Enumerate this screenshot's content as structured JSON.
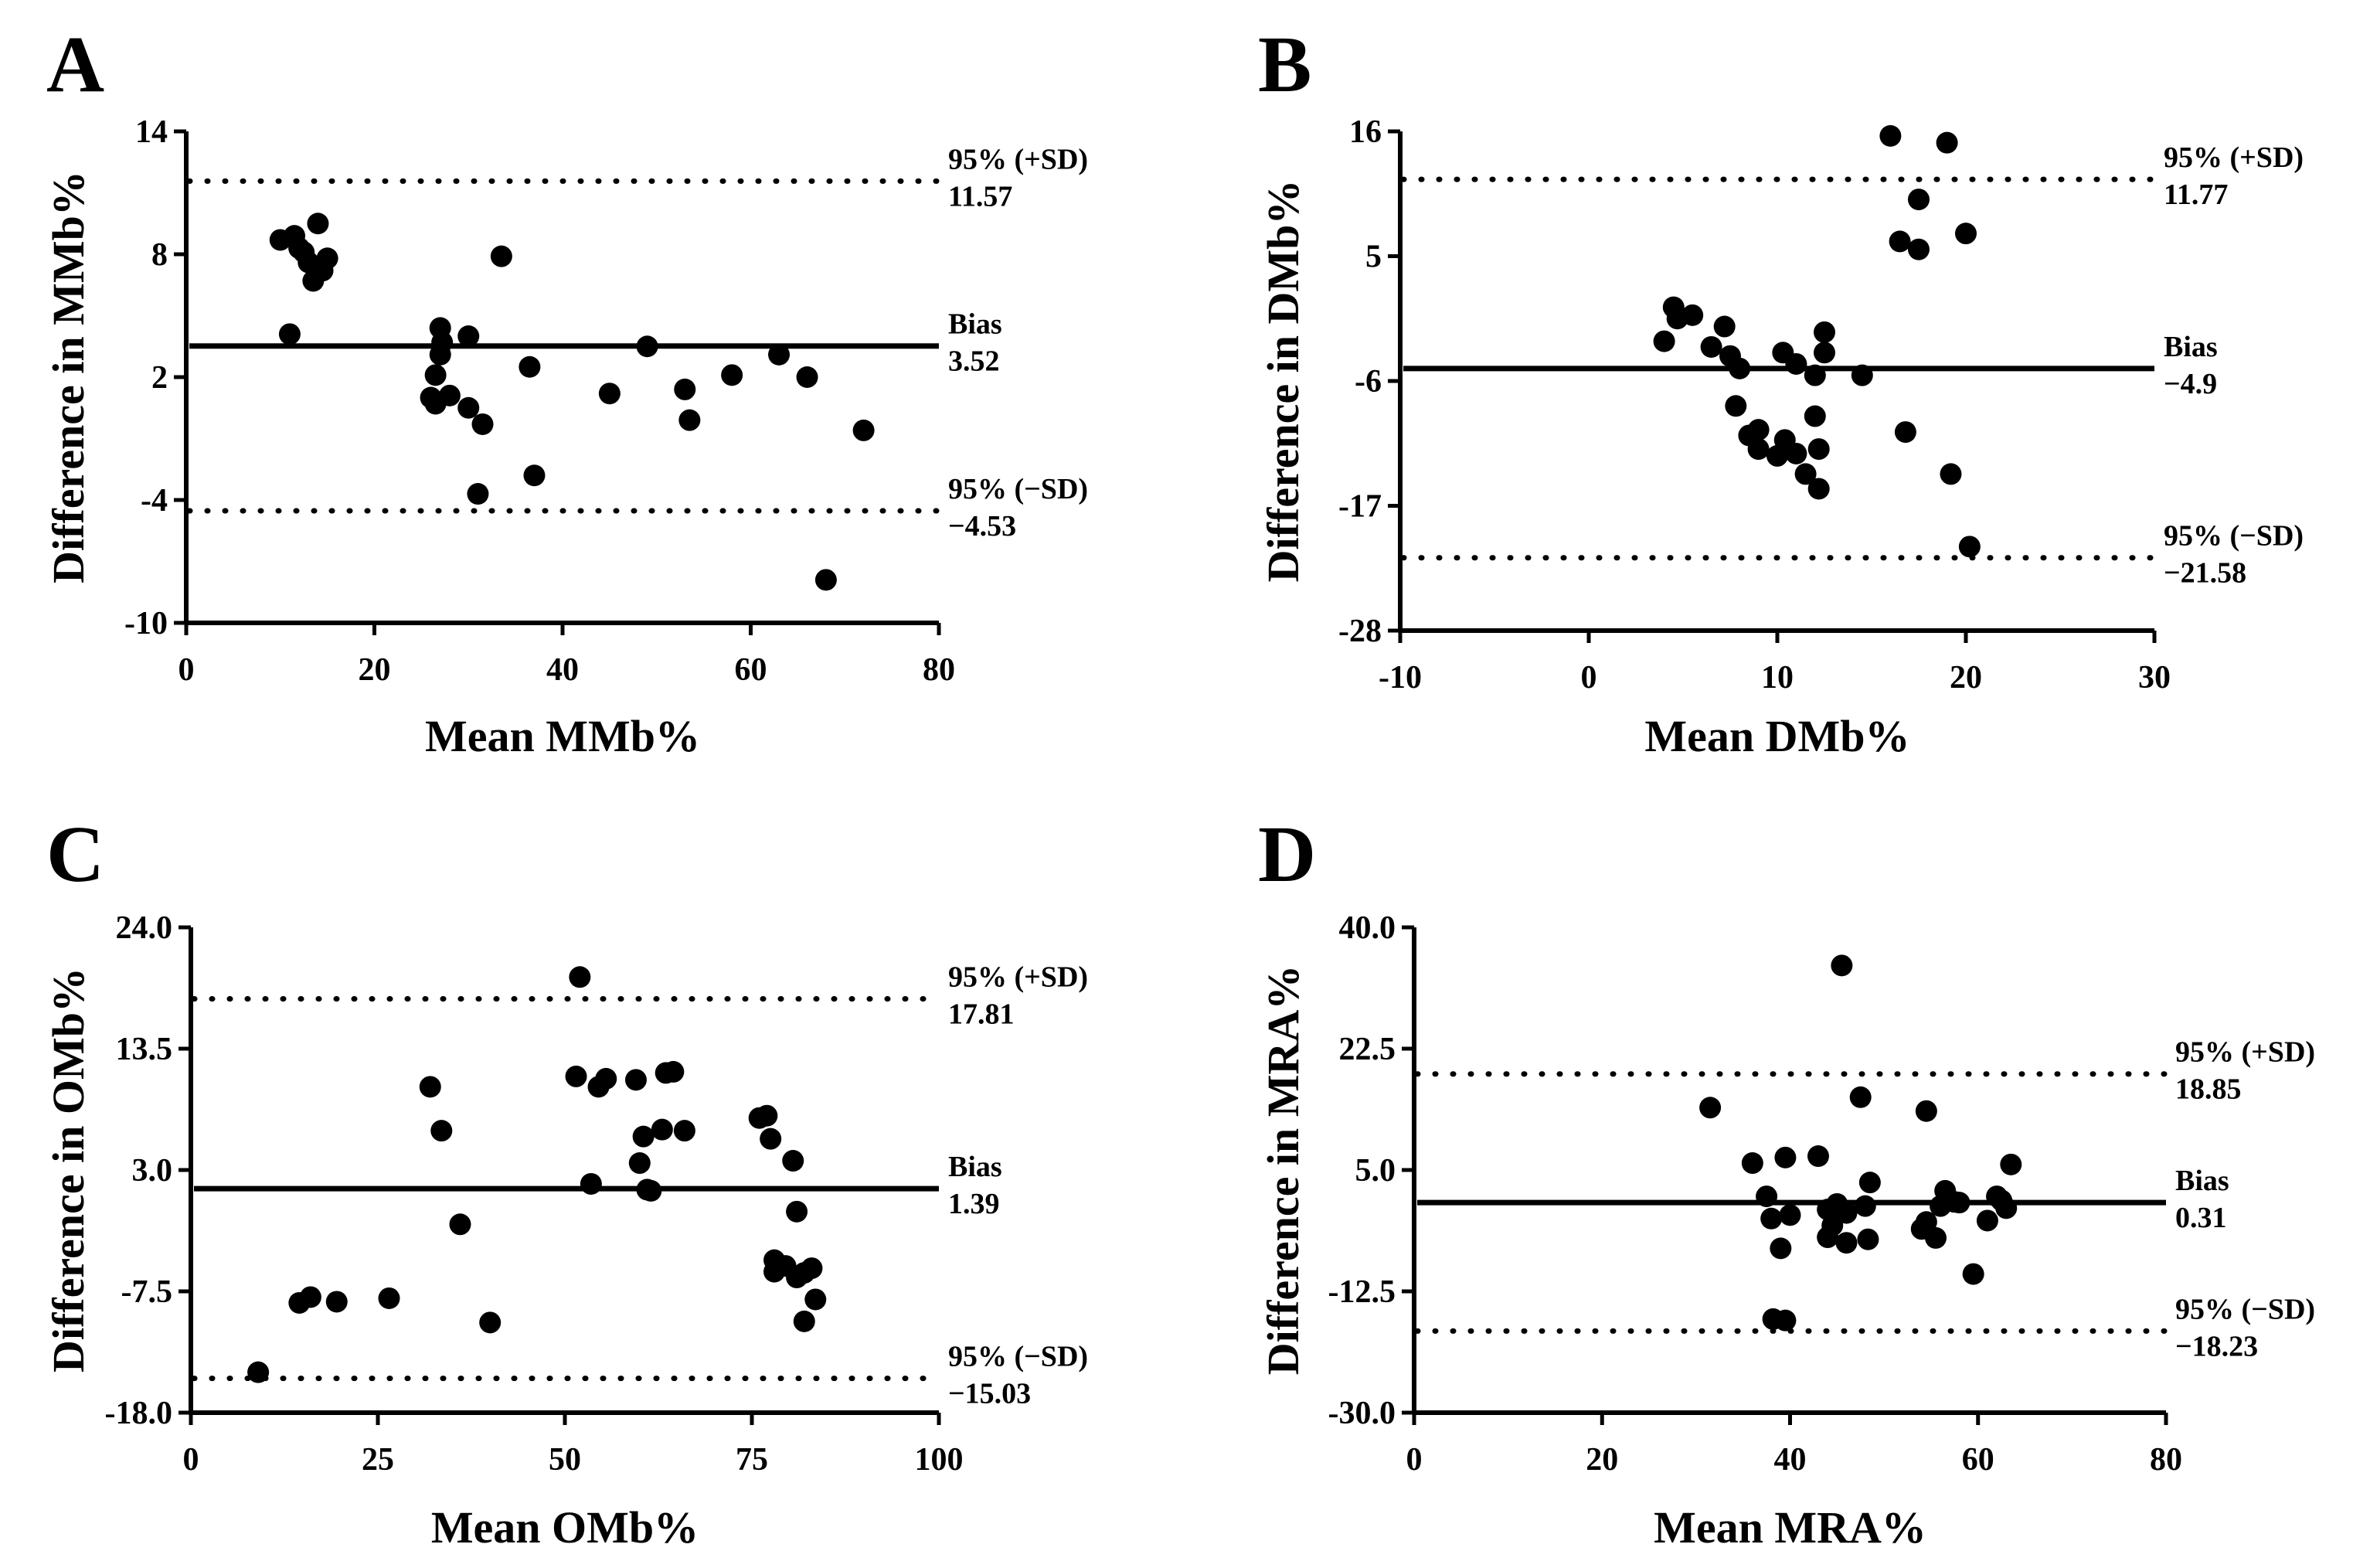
{
  "chart_data": [
    {
      "panel": "A",
      "type": "scatter",
      "xlabel": "Mean MMb%",
      "ylabel": "Difference in MMb%",
      "xlim": [
        0,
        80
      ],
      "ylim": [
        -10,
        14
      ],
      "xticks": [
        "0",
        "20",
        "40",
        "60",
        "80"
      ],
      "yticks": [
        "-10",
        "-4",
        "2",
        "8",
        "14"
      ],
      "bias": {
        "label": "Bias",
        "value_label": "3.52",
        "value": 3.52
      },
      "upper_loa": {
        "label": "95% (+SD)",
        "value_label": "11.57",
        "value": 11.57
      },
      "lower_loa": {
        "label": "95% (−SD)",
        "value_label": "−4.53",
        "value": -4.53
      },
      "points": [
        [
          10,
          8.7
        ],
        [
          11.5,
          8.9
        ],
        [
          12,
          8.3
        ],
        [
          12.5,
          8.1
        ],
        [
          13,
          7.6
        ],
        [
          14,
          9.5
        ],
        [
          14.5,
          7.2
        ],
        [
          15,
          7.8
        ],
        [
          13.5,
          6.7
        ],
        [
          11,
          4.1
        ],
        [
          27,
          4.4
        ],
        [
          27.2,
          3.7
        ],
        [
          27,
          3.1
        ],
        [
          26.5,
          2.1
        ],
        [
          26,
          1.0
        ],
        [
          26.5,
          0.7
        ],
        [
          28,
          1.1
        ],
        [
          30,
          4.0
        ],
        [
          30,
          0.5
        ],
        [
          31.5,
          -0.3
        ],
        [
          31,
          -3.7
        ],
        [
          33.5,
          7.9
        ],
        [
          36.5,
          2.5
        ],
        [
          37,
          -2.8
        ],
        [
          45,
          1.2
        ],
        [
          49,
          3.5
        ],
        [
          53,
          1.4
        ],
        [
          53.5,
          -0.1
        ],
        [
          58,
          2.1
        ],
        [
          63,
          3.1
        ],
        [
          66,
          2.0
        ],
        [
          68,
          -7.9
        ],
        [
          72,
          -0.6
        ]
      ]
    },
    {
      "panel": "B",
      "type": "scatter",
      "xlabel": "Mean DMb%",
      "ylabel": "Difference in DMb%",
      "xlim": [
        -10,
        30
      ],
      "ylim": [
        -28,
        16
      ],
      "xticks": [
        "-10",
        "0",
        "10",
        "20",
        "30"
      ],
      "yticks": [
        "-28",
        "-17",
        "-6",
        "5",
        "16"
      ],
      "bias": {
        "label": "Bias",
        "value_label": "−4.9",
        "value": -4.9
      },
      "upper_loa": {
        "label": "95% (+SD)",
        "value_label": "11.77",
        "value": 11.77
      },
      "lower_loa": {
        "label": "95% (−SD)",
        "value_label": "−21.58",
        "value": -21.58
      },
      "points": [
        [
          16,
          15.6
        ],
        [
          19,
          15
        ],
        [
          17.5,
          10
        ],
        [
          16.5,
          6.3
        ],
        [
          17.5,
          5.6
        ],
        [
          20,
          7
        ],
        [
          4.5,
          0.5
        ],
        [
          4.7,
          -0.5
        ],
        [
          5.5,
          -0.2
        ],
        [
          4,
          -2.5
        ],
        [
          6.5,
          -3
        ],
        [
          7.2,
          -1.2
        ],
        [
          7.5,
          -3.8
        ],
        [
          8,
          -4.9
        ],
        [
          7.8,
          -8.2
        ],
        [
          8.5,
          -10.8
        ],
        [
          9,
          -10.3
        ],
        [
          9,
          -12
        ],
        [
          10,
          -12.6
        ],
        [
          10.3,
          -3.5
        ],
        [
          10.4,
          -11.2
        ],
        [
          11,
          -4.5
        ],
        [
          11,
          -12.4
        ],
        [
          12,
          -5.5
        ],
        [
          12,
          -9.1
        ],
        [
          11.5,
          -14.2
        ],
        [
          12.2,
          -12
        ],
        [
          12.5,
          -3.5
        ],
        [
          12.5,
          -1.7
        ],
        [
          12.2,
          -15.5
        ],
        [
          14.5,
          -5.5
        ],
        [
          16.8,
          -10.5
        ],
        [
          19.2,
          -14.2
        ],
        [
          20.2,
          -20.6
        ]
      ]
    },
    {
      "panel": "C",
      "type": "scatter",
      "xlabel": "Mean OMb%",
      "ylabel": "Difference in OMb%",
      "xlim": [
        0,
        100
      ],
      "ylim": [
        -18,
        24
      ],
      "xticks": [
        "0",
        "25",
        "50",
        "75",
        "100"
      ],
      "yticks": [
        "-18.0",
        "-7.5",
        "3.0",
        "13.5",
        "24.0"
      ],
      "bias": {
        "label": "Bias",
        "value_label": "1.39",
        "value": 1.39
      },
      "upper_loa": {
        "label": "95% (+SD)",
        "value_label": "17.81",
        "value": 17.81
      },
      "lower_loa": {
        "label": "95% (−SD)",
        "value_label": "−15.03",
        "value": -15.03
      },
      "points": [
        [
          9,
          -14.5
        ],
        [
          14.5,
          -8.5
        ],
        [
          16,
          -8
        ],
        [
          19.5,
          -8.4
        ],
        [
          26.5,
          -8.1
        ],
        [
          32,
          10.2
        ],
        [
          33.5,
          6.4
        ],
        [
          36,
          -1.7
        ],
        [
          40,
          -10.2
        ],
        [
          52,
          19.7
        ],
        [
          51.5,
          11.1
        ],
        [
          53.5,
          1.8
        ],
        [
          54.5,
          10.2
        ],
        [
          55.5,
          10.9
        ],
        [
          59.5,
          10.8
        ],
        [
          60,
          3.6
        ],
        [
          60.5,
          5.9
        ],
        [
          61,
          1.3
        ],
        [
          61.5,
          1.2
        ],
        [
          63,
          6.5
        ],
        [
          63.5,
          11.4
        ],
        [
          64.5,
          11.5
        ],
        [
          66,
          6.4
        ],
        [
          76,
          7.5
        ],
        [
          77,
          7.7
        ],
        [
          77.5,
          5.7
        ],
        [
          78,
          -4.8
        ],
        [
          78,
          -5.8
        ],
        [
          79.5,
          -5.3
        ],
        [
          80.5,
          3.8
        ],
        [
          81,
          -6.3
        ],
        [
          81,
          -0.6
        ],
        [
          82,
          -10.1
        ],
        [
          82,
          -5.9
        ],
        [
          83,
          -5.5
        ],
        [
          83.5,
          -8.2
        ]
      ]
    },
    {
      "panel": "D",
      "type": "scatter",
      "xlabel": "Mean MRA%",
      "ylabel": "Difference in MRA%",
      "xlim": [
        0,
        80
      ],
      "ylim": [
        -30,
        40
      ],
      "xticks": [
        "0",
        "20",
        "40",
        "60",
        "80"
      ],
      "yticks": [
        "-30.0",
        "-12.5",
        "5.0",
        "22.5",
        "40.0"
      ],
      "bias": {
        "label": "Bias",
        "value_label": "0.31",
        "value": 0.31
      },
      "upper_loa": {
        "label": "95% (+SD)",
        "value_label": "18.85",
        "value": 18.85
      },
      "lower_loa": {
        "label": "95% (−SD)",
        "value_label": "−18.23",
        "value": -18.23
      },
      "points": [
        [
          31.5,
          14
        ],
        [
          36,
          6
        ],
        [
          37.5,
          1.2
        ],
        [
          38,
          -2
        ],
        [
          38.2,
          -16.5
        ],
        [
          39.5,
          -16.7
        ],
        [
          39,
          -6.3
        ],
        [
          39.5,
          6.8
        ],
        [
          40,
          -1.5
        ],
        [
          43,
          7
        ],
        [
          44,
          -4.7
        ],
        [
          44,
          -0.7
        ],
        [
          44.5,
          -3
        ],
        [
          45,
          0.1
        ],
        [
          45.5,
          34.5
        ],
        [
          46,
          -1.2
        ],
        [
          46,
          -5.5
        ],
        [
          47.5,
          15.5
        ],
        [
          48,
          -0.2
        ],
        [
          48.3,
          -5
        ],
        [
          48.5,
          3.2
        ],
        [
          54,
          -3.5
        ],
        [
          54.5,
          -2.5
        ],
        [
          54.5,
          13.5
        ],
        [
          55.5,
          -4.8
        ],
        [
          56,
          -0.2
        ],
        [
          56.5,
          2
        ],
        [
          57.5,
          0.4
        ],
        [
          58,
          0.3
        ],
        [
          59.5,
          -10
        ],
        [
          61,
          -2.3
        ],
        [
          62,
          1.2
        ],
        [
          62.5,
          0.6
        ],
        [
          63,
          -0.5
        ],
        [
          63.5,
          5.8
        ]
      ]
    }
  ]
}
